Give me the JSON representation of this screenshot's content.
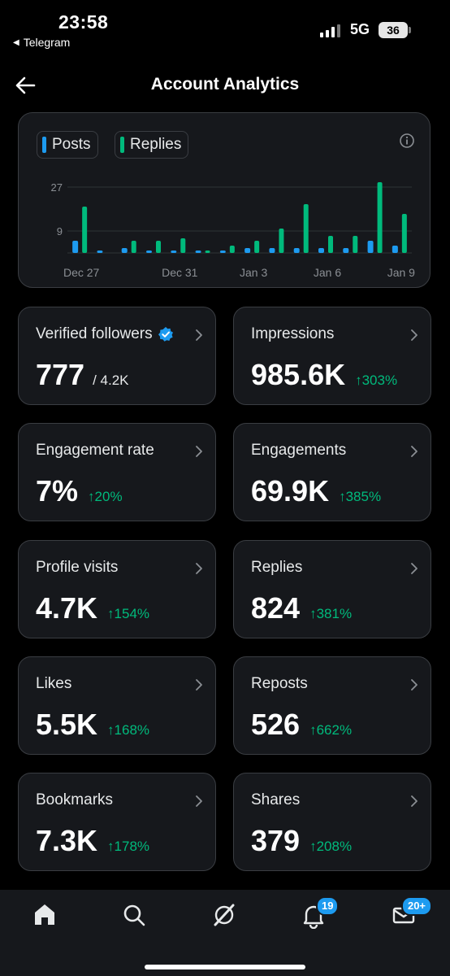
{
  "status": {
    "time": "23:58",
    "back_app": "Telegram",
    "network": "5G",
    "battery": "36"
  },
  "header": {
    "title": "Account Analytics"
  },
  "chart": {
    "legend": [
      {
        "label": "Posts",
        "color": "#1d9bf0"
      },
      {
        "label": "Replies",
        "color": "#00ba7c"
      }
    ]
  },
  "chart_data": {
    "type": "bar",
    "x_tick_labels": [
      "Dec 27",
      "Dec 31",
      "Jan 3",
      "Jan 6",
      "Jan 9"
    ],
    "y_tick_labels": [
      "27",
      "9"
    ],
    "ylim": [
      0,
      30
    ],
    "categories": [
      "Dec 27",
      "Dec 28",
      "Dec 29",
      "Dec 30",
      "Dec 31",
      "Jan 1",
      "Jan 2",
      "Jan 3",
      "Jan 4",
      "Jan 5",
      "Jan 6",
      "Jan 7",
      "Jan 8",
      "Jan 9"
    ],
    "series": [
      {
        "name": "Posts",
        "color": "#1d9bf0",
        "values": [
          5,
          1,
          2,
          1,
          1,
          1,
          1,
          2,
          2,
          2,
          2,
          2,
          5,
          3
        ]
      },
      {
        "name": "Replies",
        "color": "#00ba7c",
        "values": [
          19,
          0,
          5,
          5,
          6,
          1,
          3,
          5,
          10,
          20,
          7,
          7,
          29,
          16
        ]
      }
    ],
    "grid": true,
    "legend": "top-left"
  },
  "stats": [
    {
      "label": "Verified followers",
      "value": "777",
      "sub": "/ 4.2K",
      "change": "",
      "verified": true
    },
    {
      "label": "Impressions",
      "value": "985.6K",
      "sub": "",
      "change": "↑303%"
    },
    {
      "label": "Engagement rate",
      "value": "7%",
      "sub": "",
      "change": "↑20%"
    },
    {
      "label": "Engagements",
      "value": "69.9K",
      "sub": "",
      "change": "↑385%"
    },
    {
      "label": "Profile visits",
      "value": "4.7K",
      "sub": "",
      "change": "↑154%"
    },
    {
      "label": "Replies",
      "value": "824",
      "sub": "",
      "change": "↑381%"
    },
    {
      "label": "Likes",
      "value": "5.5K",
      "sub": "",
      "change": "↑168%"
    },
    {
      "label": "Reposts",
      "value": "526",
      "sub": "",
      "change": "↑662%"
    },
    {
      "label": "Bookmarks",
      "value": "7.3K",
      "sub": "",
      "change": "↑178%"
    },
    {
      "label": "Shares",
      "value": "379",
      "sub": "",
      "change": "↑208%"
    }
  ],
  "tabbar": {
    "notifications_badge": "19",
    "messages_badge": "20+"
  }
}
